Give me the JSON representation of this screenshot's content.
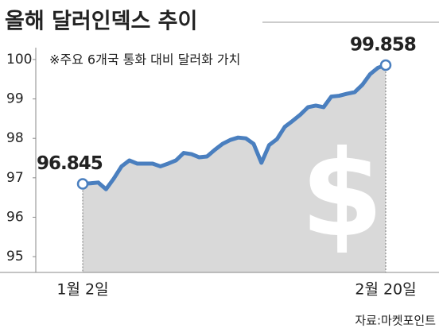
{
  "chart_data": {
    "type": "line",
    "title": "올해 달러인덱스 추이",
    "subtitle": "※주요 6개국 통화 대비 달러화 가치",
    "source": "자료:마켓포인트",
    "background_symbol": "$",
    "categories": [
      "1월 2일",
      null,
      null,
      null,
      null,
      null,
      null,
      null,
      null,
      null,
      null,
      null,
      null,
      null,
      null,
      null,
      null,
      null,
      null,
      null,
      null,
      null,
      null,
      null,
      null,
      null,
      null,
      null,
      null,
      null,
      null,
      null,
      null,
      null,
      null,
      null,
      null,
      null,
      null,
      "2월 20일"
    ],
    "series": [
      {
        "name": "달러인덱스",
        "color": "#4a7fbf",
        "area_color": "#d9d9d9",
        "values": [
          96.845,
          96.86,
          96.88,
          96.71,
          96.98,
          97.29,
          97.44,
          97.36,
          97.36,
          97.36,
          97.29,
          97.36,
          97.44,
          97.63,
          97.6,
          97.52,
          97.54,
          97.71,
          97.86,
          97.96,
          98.02,
          98.0,
          97.86,
          97.38,
          97.83,
          97.98,
          98.29,
          98.44,
          98.6,
          98.79,
          98.83,
          98.79,
          99.06,
          99.08,
          99.13,
          99.17,
          99.36,
          99.63,
          99.79,
          99.858
        ]
      }
    ],
    "ylim": [
      94.6,
      100.3
    ],
    "yticks": [
      95,
      96,
      97,
      98,
      99,
      100
    ]
  }
}
